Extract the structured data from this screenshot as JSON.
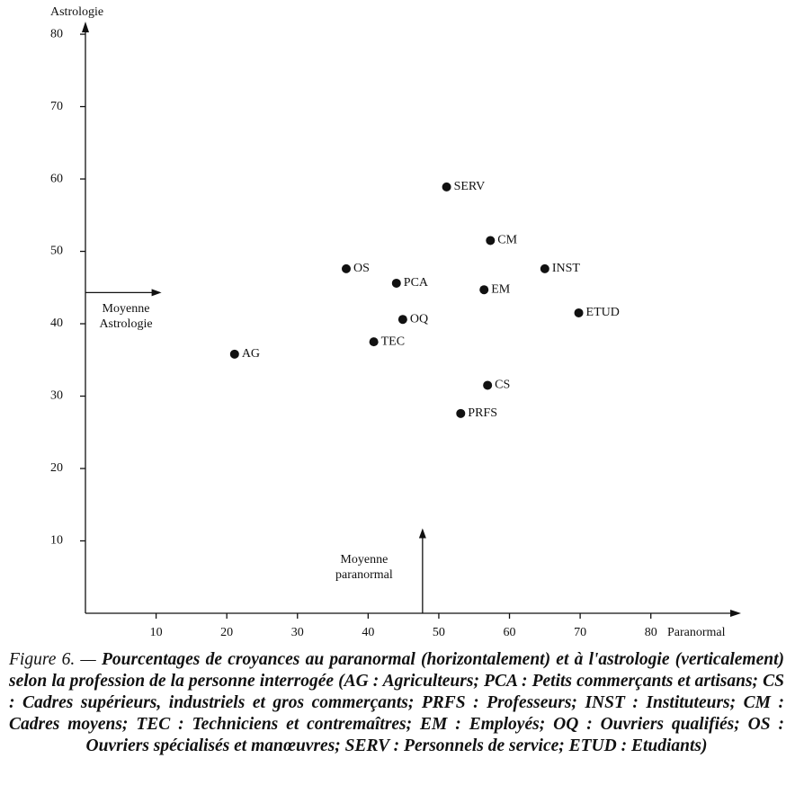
{
  "chart_data": {
    "type": "scatter",
    "x_label": "Paranormal",
    "y_label": "Astrologie",
    "xlim": [
      0,
      92
    ],
    "ylim": [
      0,
      81
    ],
    "xticks": [
      10,
      20,
      30,
      40,
      50,
      60,
      70,
      80
    ],
    "yticks": [
      10,
      20,
      30,
      40,
      50,
      60,
      70,
      80
    ],
    "color": "#111111",
    "categories": [
      "SERV",
      "CM",
      "INST",
      "OS",
      "PCA",
      "EM",
      "ETUD",
      "OQ",
      "TEC",
      "AG",
      "CS",
      "PRFS"
    ],
    "x": [
      51.1,
      57.3,
      65.0,
      36.9,
      44.0,
      56.4,
      69.8,
      44.9,
      40.8,
      21.1,
      56.9,
      53.1
    ],
    "values": [
      58.9,
      51.5,
      47.6,
      47.6,
      45.6,
      44.7,
      41.5,
      40.6,
      37.5,
      35.8,
      31.5,
      27.6
    ],
    "annotations": [
      {
        "label": "Moyenne Astrologie",
        "axis": "y",
        "value": 44.3
      },
      {
        "label": "Moyenne paranormal",
        "axis": "x",
        "value": 47.7
      }
    ],
    "caption_label": "Figure 6. —",
    "caption": "Pourcentages de croyances au paranormal (horizontalement) et à l'astrologie (verticalement) selon la profession de la personne interrogée (AG : Agriculteurs; PCA : Petits commerçants et artisans; CS : Cadres supérieurs, industriels et gros commerçants; PRFS : Professeurs; INST : Instituteurs; CM : Cadres moyens; TEC : Techniciens et contremaîtres; EM : Employés; OQ : Ouvriers qualifiés; OS : Ouvriers spécialisés et manœuvres; SERV : Personnels de service; ETUD : Etudiants)"
  }
}
